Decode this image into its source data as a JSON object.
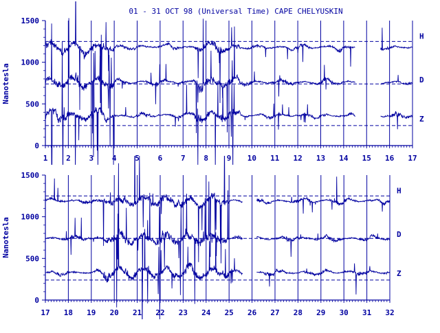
{
  "chart_data": {
    "type": "line",
    "title": "01 - 31 OCT 98 (Universal Time) CAPE CHELYUSKIN",
    "ylabel": "Nanotesla",
    "colors": {
      "trace": "#0000a0",
      "axis": "#0000a0",
      "background": "#ffffff"
    },
    "grid": "vertical day lines; dashed horizontal baselines per component",
    "panels": [
      {
        "id": "panel-top",
        "x_tick_labels": [
          "1",
          "2",
          "3",
          "4",
          "5",
          "6",
          "7",
          "8",
          "9",
          "10",
          "11",
          "12",
          "13",
          "14",
          "15",
          "16",
          "17"
        ],
        "x_range": [
          1,
          17
        ],
        "ylim": [
          0,
          1500
        ],
        "y_tick_labels": [
          "0",
          "500",
          "1000",
          "1500"
        ],
        "data_gap": [
          14.5,
          15.6
        ],
        "series": [
          {
            "name": "H",
            "baseline": 1250,
            "typical": 1180
          },
          {
            "name": "D",
            "baseline": 740,
            "typical": 760
          },
          {
            "name": "Z",
            "baseline": 240,
            "typical": 360
          }
        ]
      },
      {
        "id": "panel-bottom",
        "x_tick_labels": [
          "17",
          "18",
          "19",
          "20",
          "21",
          "22",
          "23",
          "24",
          "25",
          "26",
          "27",
          "28",
          "29",
          "30",
          "31",
          "32"
        ],
        "x_range": [
          17,
          32
        ],
        "ylim": [
          0,
          1500
        ],
        "y_tick_labels": [
          "0",
          "500",
          "1000",
          "1500"
        ],
        "data_gap": [
          25.6,
          26.2
        ],
        "series": [
          {
            "name": "H",
            "baseline": 1250,
            "typical": 1190
          },
          {
            "name": "D",
            "baseline": 740,
            "typical": 740
          },
          {
            "name": "Z",
            "baseline": 240,
            "typical": 330
          }
        ]
      }
    ]
  }
}
